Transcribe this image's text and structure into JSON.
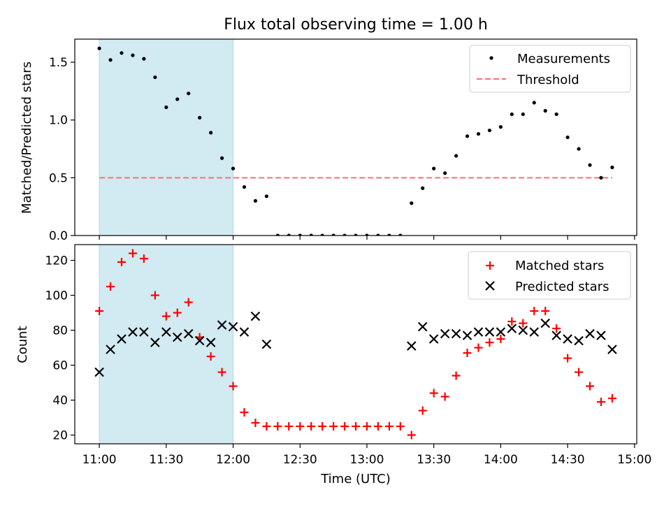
{
  "title": "Flux total observing time = 1.00 h",
  "colors": {
    "shade": "#add8e6",
    "threshold": "#ff6f6f",
    "matched": "#ff0000",
    "predicted": "#000000",
    "measurement": "#000000"
  },
  "chart_data": [
    {
      "type": "scatter",
      "panel": "top",
      "ylabel": "Matched/Predicted stars",
      "ylim": [
        0,
        1.7
      ],
      "yticks": [
        0.0,
        0.5,
        1.0,
        1.5
      ],
      "ytick_labels": [
        "0.0",
        "0.5",
        "1.0",
        "1.5"
      ],
      "shaded_interval": [
        "11:00",
        "12:00"
      ],
      "legend": {
        "placement": "top-right",
        "entries": [
          "Measurements",
          "Threshold"
        ]
      },
      "threshold": {
        "name": "Threshold",
        "value": 0.5,
        "x_start": "11:00",
        "x_end": "14:50"
      },
      "series": [
        {
          "name": "Measurements",
          "marker": "dot",
          "x": [
            "11:00",
            "11:05",
            "11:10",
            "11:15",
            "11:20",
            "11:25",
            "11:30",
            "11:35",
            "11:40",
            "11:45",
            "11:50",
            "11:55",
            "12:00",
            "12:05",
            "12:10",
            "12:15",
            "12:20",
            "12:25",
            "12:30",
            "12:35",
            "12:40",
            "12:45",
            "12:50",
            "12:55",
            "13:00",
            "13:05",
            "13:10",
            "13:15",
            "13:20",
            "13:25",
            "13:30",
            "13:35",
            "13:40",
            "13:45",
            "13:50",
            "13:55",
            "14:00",
            "14:05",
            "14:10",
            "14:15",
            "14:20",
            "14:25",
            "14:30",
            "14:35",
            "14:40",
            "14:45",
            "14:50"
          ],
          "y": [
            1.62,
            1.52,
            1.58,
            1.56,
            1.53,
            1.37,
            1.11,
            1.18,
            1.23,
            1.02,
            0.89,
            0.67,
            0.58,
            0.42,
            0.3,
            0.34,
            0,
            0,
            0,
            0,
            0,
            0,
            0,
            0,
            0,
            0,
            0,
            0,
            0.28,
            0.41,
            0.58,
            0.54,
            0.69,
            0.86,
            0.88,
            0.91,
            0.94,
            1.05,
            1.05,
            1.15,
            1.08,
            1.05,
            0.85,
            0.75,
            0.61,
            0.5,
            0.59
          ]
        }
      ]
    },
    {
      "type": "scatter",
      "panel": "bottom",
      "xlabel": "Time (UTC)",
      "ylabel": "Count",
      "ylim": [
        15,
        129
      ],
      "yticks": [
        20,
        40,
        60,
        80,
        100,
        120
      ],
      "ytick_labels": [
        "20",
        "40",
        "60",
        "80",
        "100",
        "120"
      ],
      "xticks": [
        "11:00",
        "11:30",
        "12:00",
        "12:30",
        "13:00",
        "13:30",
        "14:00",
        "14:30",
        "15:00"
      ],
      "x_range": [
        "10:49",
        "15:01"
      ],
      "shaded_interval": [
        "11:00",
        "12:00"
      ],
      "legend": {
        "placement": "top-right",
        "entries": [
          "Matched stars",
          "Predicted stars"
        ]
      },
      "series": [
        {
          "name": "Matched stars",
          "marker": "plus",
          "x": [
            "11:00",
            "11:05",
            "11:10",
            "11:15",
            "11:20",
            "11:25",
            "11:30",
            "11:35",
            "11:40",
            "11:45",
            "11:50",
            "11:55",
            "12:00",
            "12:05",
            "12:10",
            "12:15",
            "12:20",
            "12:25",
            "12:30",
            "12:35",
            "12:40",
            "12:45",
            "12:50",
            "12:55",
            "13:00",
            "13:05",
            "13:10",
            "13:15",
            "13:20",
            "13:25",
            "13:30",
            "13:35",
            "13:40",
            "13:45",
            "13:50",
            "13:55",
            "14:00",
            "14:05",
            "14:10",
            "14:15",
            "14:20",
            "14:25",
            "14:30",
            "14:35",
            "14:40",
            "14:45",
            "14:50"
          ],
          "y": [
            91,
            105,
            119,
            124,
            121,
            100,
            88,
            90,
            96,
            76,
            65,
            56,
            48,
            33,
            27,
            25,
            25,
            25,
            25,
            25,
            25,
            25,
            25,
            25,
            25,
            25,
            25,
            25,
            20,
            34,
            44,
            42,
            54,
            67,
            70,
            73,
            75,
            85,
            84,
            91,
            91,
            81,
            64,
            56,
            48,
            39,
            41
          ]
        },
        {
          "name": "Predicted stars",
          "marker": "x",
          "x": [
            "11:00",
            "11:05",
            "11:10",
            "11:15",
            "11:20",
            "11:25",
            "11:30",
            "11:35",
            "11:40",
            "11:45",
            "11:50",
            "11:55",
            "12:00",
            "12:05",
            "12:10",
            "12:15",
            "13:20",
            "13:25",
            "13:30",
            "13:35",
            "13:40",
            "13:45",
            "13:50",
            "13:55",
            "14:00",
            "14:05",
            "14:10",
            "14:15",
            "14:20",
            "14:25",
            "14:30",
            "14:35",
            "14:40",
            "14:45",
            "14:50"
          ],
          "y": [
            56,
            69,
            75,
            79,
            79,
            73,
            79,
            76,
            78,
            74,
            73,
            83,
            82,
            79,
            88,
            72,
            71,
            82,
            75,
            78,
            78,
            77,
            79,
            79,
            79,
            81,
            80,
            79,
            84,
            77,
            75,
            74,
            78,
            77,
            69
          ]
        }
      ]
    }
  ]
}
